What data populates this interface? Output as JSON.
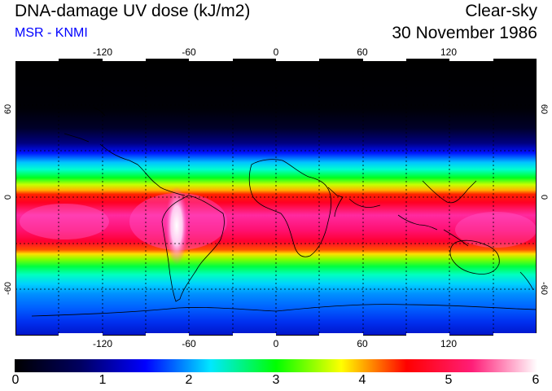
{
  "header": {
    "title": "DNA-damage UV dose (kJ/m2)",
    "subtitle": "MSR - KNMI",
    "condition": "Clear-sky",
    "date": "30 November 1986"
  },
  "map": {
    "lon_top": [
      "-120",
      "-60",
      "0",
      "60",
      "120"
    ],
    "lon_bottom": [
      "-120",
      "-60",
      "0",
      "60",
      "120"
    ],
    "lat_left": [
      "60",
      "0",
      "-60"
    ],
    "lat_right": [
      "60",
      "0",
      "-60"
    ],
    "lon_values": [
      -120,
      -60,
      0,
      60,
      120
    ],
    "lat_values": [
      60,
      0,
      -60
    ],
    "lon_range": [
      -180,
      180
    ],
    "lat_range": [
      -90,
      90
    ]
  },
  "colorbar": {
    "labels": [
      "0",
      "1",
      "2",
      "3",
      "4",
      "5",
      "6"
    ],
    "min": 0,
    "max": 6,
    "colors": [
      "#000000",
      "#000060",
      "#0000ff",
      "#00e8ff",
      "#00ff00",
      "#ffff00",
      "#ff0000",
      "#ff1e78",
      "#ffffff"
    ]
  },
  "chart_data": {
    "type": "heatmap",
    "title": "DNA-damage UV dose (kJ/m2)",
    "colorbar_range": [
      0,
      6
    ],
    "latitude_band_profile": [
      {
        "lat": 90,
        "value": 0.0
      },
      {
        "lat": 60,
        "value": 0.05
      },
      {
        "lat": 50,
        "value": 0.2
      },
      {
        "lat": 40,
        "value": 0.5
      },
      {
        "lat": 32,
        "value": 1.0
      },
      {
        "lat": 28,
        "value": 1.5
      },
      {
        "lat": 22,
        "value": 2.2
      },
      {
        "lat": 15,
        "value": 3.0
      },
      {
        "lat": 8,
        "value": 3.7
      },
      {
        "lat": 3,
        "value": 4.1
      },
      {
        "lat": 0,
        "value": 4.5
      },
      {
        "lat": -8,
        "value": 4.8
      },
      {
        "lat": -18,
        "value": 4.7
      },
      {
        "lat": -25,
        "value": 4.5
      },
      {
        "lat": -30,
        "value": 4.2
      },
      {
        "lat": -38,
        "value": 3.3
      },
      {
        "lat": -45,
        "value": 2.7
      },
      {
        "lat": -52,
        "value": 2.1
      },
      {
        "lat": -60,
        "value": 1.8
      },
      {
        "lat": -70,
        "value": 1.6
      },
      {
        "lat": -80,
        "value": 1.3
      },
      {
        "lat": -90,
        "value": 1.1
      }
    ],
    "peak_region": "Andes, South America (~5.5-6 kJ/m2)"
  }
}
